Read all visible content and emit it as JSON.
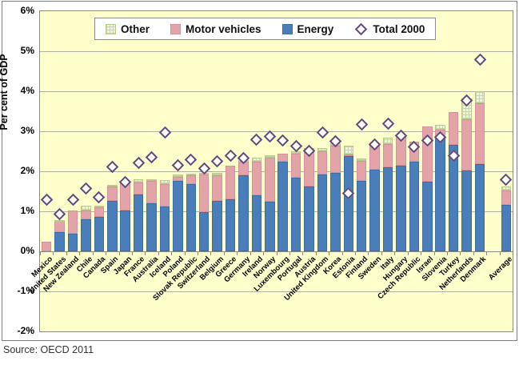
{
  "figure": {
    "ylabel": "Per cent of GDP",
    "source": "Source: OECD 2011",
    "legend": [
      {
        "label": "Other",
        "swatch": "other"
      },
      {
        "label": "Motor vehicles",
        "swatch": "motor"
      },
      {
        "label": "Energy",
        "swatch": "energy"
      },
      {
        "label": "Total 2000",
        "swatch": "diamond"
      }
    ],
    "colors": {
      "plot_bg": "#ffffcc",
      "energy": "#4a7ebb",
      "motor": "#e2a3a9",
      "other_base": "#eef3dc",
      "other_grid": "#c6d7a2",
      "diamond_outline": "#5f497a",
      "gridline": "#b0b09e",
      "axis": "#8c8c82"
    }
  },
  "chart_data": {
    "type": "bar",
    "stacked": true,
    "title": "",
    "xlabel": "",
    "ylabel": "Per cent of GDP",
    "unit": "% of GDP",
    "ylim": [
      -2,
      6
    ],
    "yticks": [
      {
        "label": "6%",
        "value": 6
      },
      {
        "label": "5%",
        "value": 5
      },
      {
        "label": "4%",
        "value": 4
      },
      {
        "label": "3%",
        "value": 3
      },
      {
        "label": "2%",
        "value": 2
      },
      {
        "label": "1%",
        "value": 1
      },
      {
        "label": "0%",
        "value": 0
      },
      {
        "label": "-1%",
        "value": -1
      },
      {
        "label": "-2%",
        "value": -2
      }
    ],
    "grid": true,
    "legend_position": "top",
    "gap_before_last_category": true,
    "categories": [
      "Mexico",
      "United States",
      "New Zealand",
      "Chile",
      "Canada",
      "Spain",
      "Japan",
      "France",
      "Australia",
      "Iceland",
      "Poland",
      "Slovak Republic",
      "Switzerland",
      "Belgium",
      "Greece",
      "Germany",
      "Ireland",
      "Norway",
      "Luxembourg",
      "Portugal",
      "Austria",
      "United Kingdom",
      "Korea",
      "Estonia",
      "Finland",
      "Sweden",
      "Italy",
      "Hungary",
      "Czech Republic",
      "Israel",
      "Slovenia",
      "Turkey",
      "Netherlands",
      "Denmark",
      "Average"
    ],
    "series": [
      {
        "name": "Energy",
        "stack_order": 1,
        "values": [
          0.0,
          0.48,
          0.44,
          0.8,
          0.86,
          1.27,
          1.02,
          1.42,
          1.2,
          1.12,
          1.77,
          1.68,
          0.98,
          1.27,
          1.31,
          1.91,
          1.41,
          1.24,
          2.24,
          1.85,
          1.62,
          1.92,
          1.97,
          2.39,
          1.77,
          2.05,
          2.11,
          2.15,
          2.25,
          1.74,
          2.83,
          2.66,
          2.02,
          2.19,
          1.17
        ]
      },
      {
        "name": "Motor vehicles",
        "stack_order": 2,
        "values": [
          0.25,
          0.28,
          0.58,
          0.22,
          0.24,
          0.35,
          0.7,
          0.3,
          0.57,
          0.56,
          0.1,
          0.22,
          0.95,
          0.63,
          0.83,
          0.34,
          0.84,
          1.1,
          0.21,
          0.6,
          0.9,
          0.58,
          0.68,
          0.04,
          0.5,
          0.61,
          0.57,
          0.71,
          0.5,
          1.39,
          0.22,
          0.82,
          1.28,
          1.52,
          0.36
        ]
      },
      {
        "name": "Other",
        "stack_order": 3,
        "values": [
          0.0,
          0.02,
          0.0,
          0.12,
          0.05,
          0.05,
          0.05,
          0.08,
          0.04,
          0.1,
          0.06,
          0.04,
          0.04,
          0.07,
          0.0,
          0.04,
          0.09,
          0.07,
          0.0,
          0.05,
          0.06,
          0.08,
          0.05,
          0.22,
          0.05,
          0.04,
          0.17,
          0.04,
          0.0,
          0.0,
          0.12,
          0.0,
          0.52,
          0.3,
          0.09
        ]
      }
    ],
    "markers": {
      "name": "Total 2000",
      "style": "hollow-diamond",
      "values": [
        1.29,
        0.93,
        1.29,
        1.57,
        1.35,
        2.11,
        1.73,
        2.21,
        2.35,
        2.97,
        2.15,
        2.3,
        2.07,
        2.26,
        2.4,
        2.34,
        2.8,
        2.88,
        2.77,
        2.63,
        2.51,
        2.98,
        2.75,
        1.46,
        3.17,
        2.68,
        3.2,
        2.9,
        2.62,
        2.77,
        2.85,
        2.39,
        3.78,
        4.79,
        1.79
      ]
    }
  }
}
